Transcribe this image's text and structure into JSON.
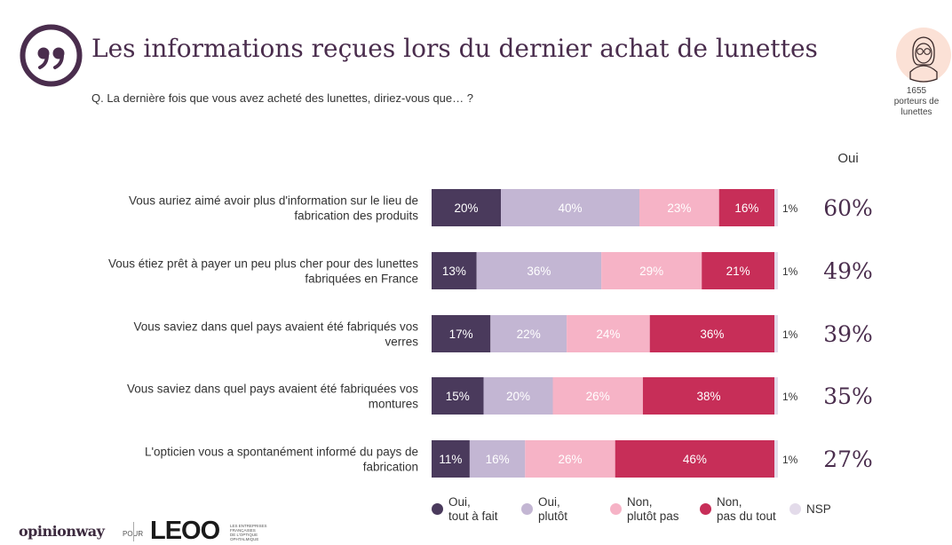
{
  "title": "Les informations reçues lors du dernier achat de lunettes",
  "question": "Q. La dernière fois que vous avez acheté des lunettes, diriez-vous que… ?",
  "sample": {
    "count": "1655",
    "label": "porteurs de lunettes"
  },
  "oui_header": "Oui",
  "colors": {
    "oui_tout_a_fait": "#4a3a5c",
    "oui_plutot": "#c3b6d3",
    "non_plutot_pas": "#f6b3c6",
    "non_pas_du_tout": "#c72e58",
    "nsp": "#e3dbea",
    "title": "#4a2d4d"
  },
  "chart_data": {
    "type": "bar",
    "orientation": "horizontal-stacked-100",
    "categories": [
      "Vous auriez aimé avoir plus d'information sur le lieu de fabrication des produits",
      "Vous étiez prêt à payer un peu plus cher pour des lunettes fabriquées en France",
      "Vous saviez dans quel pays avaient été fabriqués vos verres",
      "Vous saviez dans quel pays avaient été fabriquées vos montures",
      "L'opticien vous a spontanément informé du pays de fabrication"
    ],
    "series": [
      {
        "name": "Oui, tout à fait",
        "key": "oui_tout_a_fait",
        "values": [
          20,
          13,
          17,
          15,
          11
        ]
      },
      {
        "name": "Oui, plutôt",
        "key": "oui_plutot",
        "values": [
          40,
          36,
          22,
          20,
          16
        ]
      },
      {
        "name": "Non, plutôt pas",
        "key": "non_plutot_pas",
        "values": [
          23,
          29,
          24,
          26,
          26
        ]
      },
      {
        "name": "Non, pas du tout",
        "key": "non_pas_du_tout",
        "values": [
          16,
          21,
          36,
          38,
          46
        ]
      },
      {
        "name": "NSP",
        "key": "nsp",
        "values": [
          1,
          1,
          1,
          1,
          1
        ]
      }
    ],
    "oui_totals": [
      "60%",
      "49%",
      "39%",
      "35%",
      "27%"
    ],
    "value_suffix": "%",
    "xlim": [
      0,
      100
    ]
  },
  "legend": [
    {
      "label": "Oui,\ntout à fait",
      "key": "oui_tout_a_fait"
    },
    {
      "label": "Oui,\nplutôt",
      "key": "oui_plutot"
    },
    {
      "label": "Non,\nplutôt pas",
      "key": "non_plutot_pas"
    },
    {
      "label": "Non,\npas du tout",
      "key": "non_pas_du_tout"
    },
    {
      "label": "NSP",
      "key": "nsp"
    }
  ],
  "branding": {
    "opinionway": "opinionway",
    "pour": "POUR",
    "leoo": "LEOO",
    "leoo_caption": "LES ENTREPRISES\nFRANÇAISES\nDE L'OPTIQUE\nOPHTALMIQUE"
  }
}
